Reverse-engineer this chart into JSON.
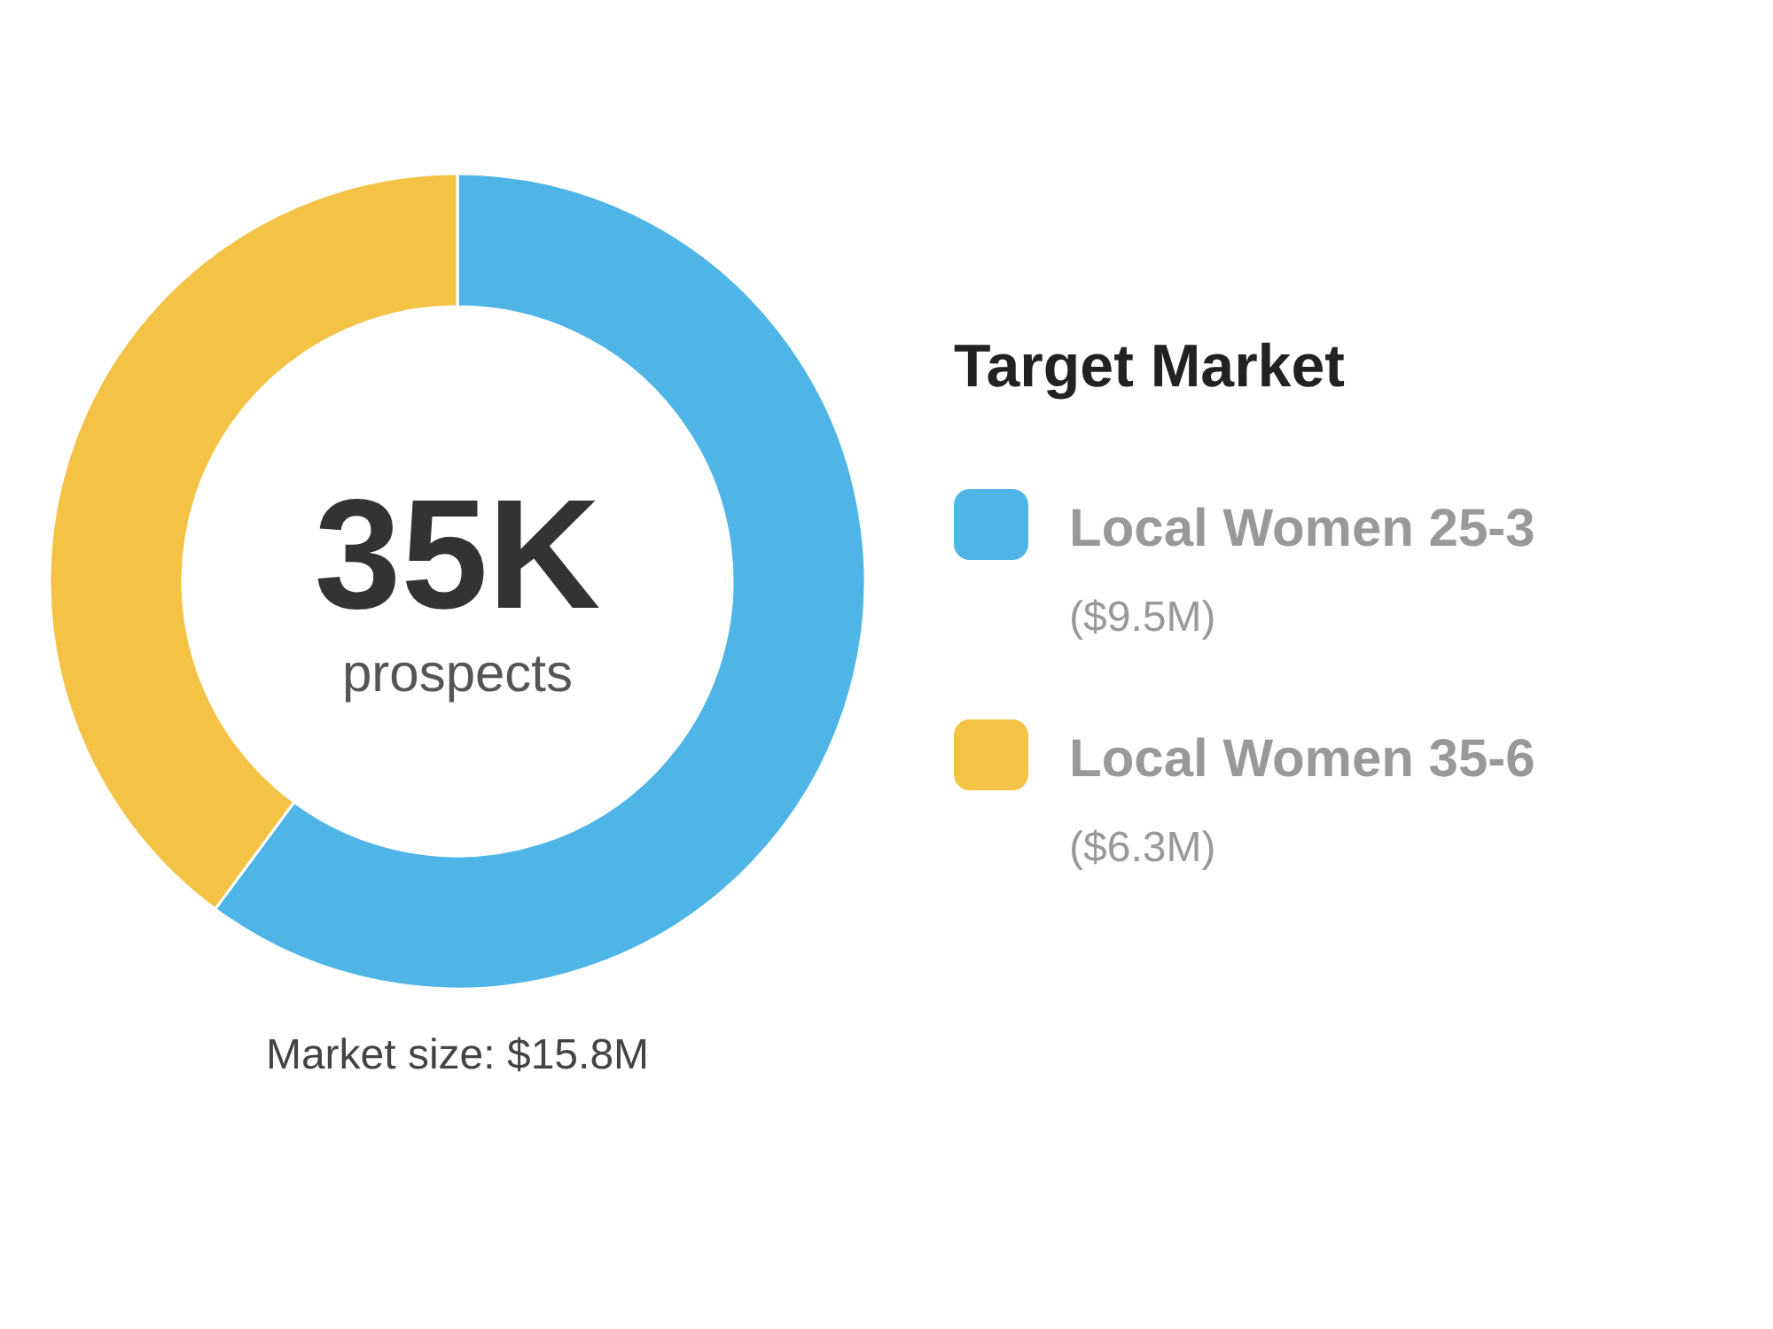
{
  "chart_data": {
    "type": "donut",
    "legend_title": "Target Market",
    "legend": "right",
    "categories": [
      "Local Women 25-3",
      "Local Women 35-6"
    ],
    "values": [
      9.5,
      6.3
    ],
    "colors": [
      "#4fb5e6",
      "#f4c244"
    ],
    "value_labels": [
      "($9.5M)",
      "($6.3M)"
    ],
    "annotations": [
      "35K",
      "prospects",
      "Market size: $15.8M"
    ]
  }
}
